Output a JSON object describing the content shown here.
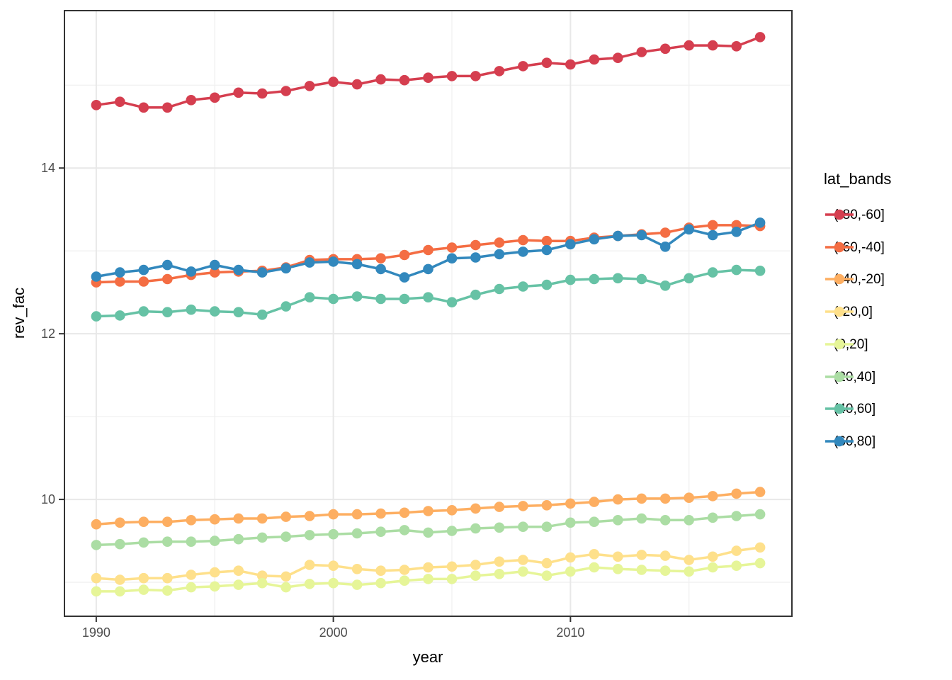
{
  "chart_data": {
    "type": "line",
    "xlabel": "year",
    "ylabel": "rev_fac",
    "legend_title": "lat_bands",
    "legend_position": "right",
    "grid": true,
    "x": [
      1990,
      1991,
      1992,
      1993,
      1994,
      1995,
      1996,
      1997,
      1998,
      1999,
      2000,
      2001,
      2002,
      2003,
      2004,
      2005,
      2006,
      2007,
      2008,
      2009,
      2010,
      2011,
      2012,
      2013,
      2014,
      2015,
      2016,
      2017,
      2018
    ],
    "xlim": [
      1988.66,
      2019.34
    ],
    "ylim": [
      8.59,
      15.9
    ],
    "x_ticks": [
      1990,
      2000,
      2010
    ],
    "x_tick_labels": [
      "1990",
      "2000",
      "2010"
    ],
    "x_minor_ticks": [
      1995,
      2005,
      2015
    ],
    "y_ticks": [
      10,
      12,
      14
    ],
    "y_tick_labels": [
      "10",
      "12",
      "14"
    ],
    "y_minor_ticks": [
      9,
      11,
      13,
      15
    ],
    "series": [
      {
        "name": "(-80,-60]",
        "color": "#D53E4F",
        "values": [
          14.76,
          14.8,
          14.73,
          14.73,
          14.82,
          14.85,
          14.91,
          14.9,
          14.93,
          14.99,
          15.04,
          15.01,
          15.07,
          15.06,
          15.09,
          15.11,
          15.11,
          15.17,
          15.23,
          15.27,
          15.25,
          15.31,
          15.33,
          15.4,
          15.44,
          15.48,
          15.48,
          15.47,
          15.58
        ]
      },
      {
        "name": "(-60,-40]",
        "color": "#F46D43",
        "values": [
          12.62,
          12.63,
          12.63,
          12.66,
          12.71,
          12.74,
          12.75,
          12.76,
          12.8,
          12.89,
          12.9,
          12.9,
          12.91,
          12.95,
          13.01,
          13.04,
          13.07,
          13.1,
          13.13,
          13.12,
          13.12,
          13.16,
          13.18,
          13.2,
          13.22,
          13.28,
          13.31,
          13.31,
          13.3
        ]
      },
      {
        "name": "(-40,-20]",
        "color": "#FDAE61",
        "values": [
          9.7,
          9.72,
          9.73,
          9.73,
          9.75,
          9.76,
          9.77,
          9.77,
          9.79,
          9.8,
          9.82,
          9.82,
          9.83,
          9.84,
          9.86,
          9.87,
          9.89,
          9.91,
          9.92,
          9.93,
          9.95,
          9.97,
          10.0,
          10.01,
          10.01,
          10.02,
          10.04,
          10.07,
          10.09
        ]
      },
      {
        "name": "(-20,0]",
        "color": "#FEE08B",
        "values": [
          9.05,
          9.03,
          9.05,
          9.05,
          9.09,
          9.12,
          9.14,
          9.08,
          9.07,
          9.21,
          9.2,
          9.16,
          9.14,
          9.15,
          9.18,
          9.19,
          9.21,
          9.25,
          9.27,
          9.23,
          9.3,
          9.34,
          9.31,
          9.33,
          9.32,
          9.27,
          9.31,
          9.38,
          9.42
        ]
      },
      {
        "name": "(0,20]",
        "color": "#E6F598",
        "values": [
          8.89,
          8.89,
          8.91,
          8.9,
          8.94,
          8.95,
          8.97,
          8.99,
          8.94,
          8.98,
          8.99,
          8.97,
          8.99,
          9.02,
          9.04,
          9.04,
          9.08,
          9.1,
          9.13,
          9.08,
          9.13,
          9.18,
          9.16,
          9.15,
          9.14,
          9.13,
          9.18,
          9.2,
          9.23
        ]
      },
      {
        "name": "(20,40]",
        "color": "#ABDDA4",
        "values": [
          9.45,
          9.46,
          9.48,
          9.49,
          9.49,
          9.5,
          9.52,
          9.54,
          9.55,
          9.57,
          9.58,
          9.59,
          9.61,
          9.63,
          9.6,
          9.62,
          9.65,
          9.66,
          9.67,
          9.67,
          9.72,
          9.73,
          9.75,
          9.77,
          9.75,
          9.75,
          9.78,
          9.8,
          9.82
        ]
      },
      {
        "name": "(40,60]",
        "color": "#66C2A5",
        "values": [
          12.21,
          12.22,
          12.27,
          12.26,
          12.29,
          12.27,
          12.26,
          12.23,
          12.33,
          12.44,
          12.42,
          12.45,
          12.42,
          12.42,
          12.44,
          12.38,
          12.47,
          12.54,
          12.57,
          12.59,
          12.65,
          12.66,
          12.67,
          12.66,
          12.58,
          12.67,
          12.74,
          12.77,
          12.76
        ]
      },
      {
        "name": "(60,80]",
        "color": "#3288BD",
        "values": [
          12.69,
          12.74,
          12.77,
          12.83,
          12.75,
          12.83,
          12.77,
          12.74,
          12.79,
          12.86,
          12.87,
          12.84,
          12.78,
          12.68,
          12.78,
          12.91,
          12.92,
          12.96,
          12.99,
          13.01,
          13.08,
          13.14,
          13.18,
          13.19,
          13.05,
          13.26,
          13.19,
          13.23,
          13.34
        ]
      }
    ]
  },
  "theme": {
    "background": "#FFFFFF",
    "panel_background": "#FFFFFF",
    "panel_border": "#333333",
    "grid_major": "#E8E8E8",
    "grid_minor": "#F0F0F0",
    "tick_color": "#333333",
    "tick_label_color": "#4D4D4D",
    "text_color": "#000000"
  }
}
